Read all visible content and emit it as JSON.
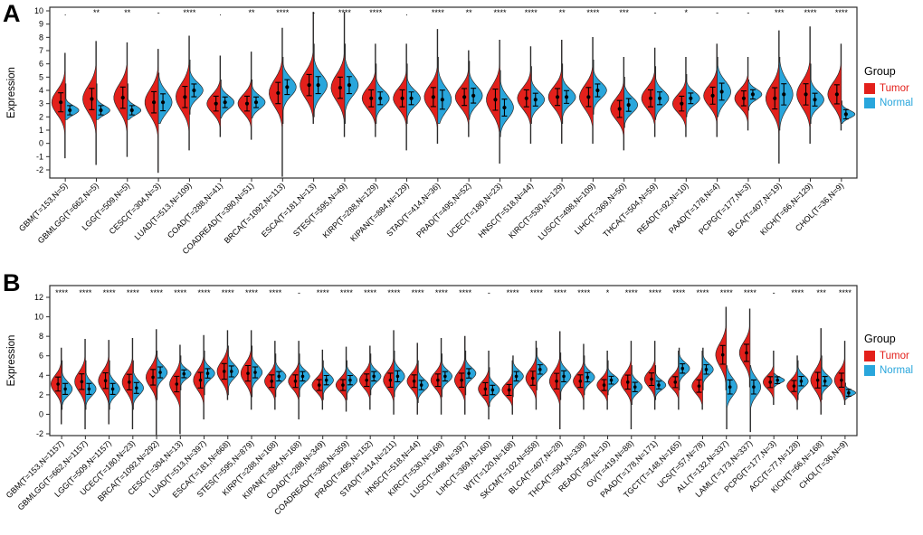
{
  "figure": {
    "panels": [
      {
        "label": "A"
      },
      {
        "label": "B"
      }
    ]
  },
  "legend": {
    "title": "Group",
    "items": [
      {
        "label": "Tumor",
        "color": "#E3201B"
      },
      {
        "label": "Normal",
        "color": "#29A6DC"
      }
    ]
  },
  "chart_data": [
    {
      "type": "violin",
      "variant": "split-violin",
      "panel": "A",
      "ylabel": "Expression",
      "ylim": [
        -2,
        10
      ],
      "yticks": [
        10,
        9,
        8,
        7,
        6,
        5,
        4,
        3,
        2,
        1,
        0,
        -1,
        -2
      ],
      "grid": false,
      "legend_position": "right",
      "series": [
        {
          "name": "Tumor",
          "color": "#E3201B"
        },
        {
          "name": "Normal",
          "color": "#29A6DC"
        }
      ],
      "categories": [
        "GBM(T=153,N=5)",
        "GBMLGG(T=662,N=5)",
        "LGG(T=509,N=5)",
        "CESC(T=304,N=3)",
        "LUAD(T=513,N=109)",
        "COAD(T=288,N=41)",
        "COADREAD(T=380,N=51)",
        "BRCA(T=1092,N=113)",
        "ESCA(T=181,N=13)",
        "STES(T=595,N=49)",
        "KIRP(T=288,N=129)",
        "KIPAN(T=884,N=129)",
        "STAD(T=414,N=36)",
        "PRAD(T=495,N=52)",
        "UCEC(T=180,N=23)",
        "HNSC(T=518,N=44)",
        "KIRC(T=530,N=129)",
        "LUSC(T=498,N=109)",
        "LIHC(T=369,N=50)",
        "THCA(T=504,N=59)",
        "READ(T=92,N=10)",
        "PAAD(T=178,N=4)",
        "PCPG(T=177,N=3)",
        "BLCA(T=407,N=19)",
        "KICH(T=66,N=129)",
        "CHOL(T=36,N=9)"
      ],
      "significance": [
        ".",
        "**",
        "**",
        "-",
        "****",
        ".",
        "**",
        "****",
        "-",
        "****",
        "****",
        ".",
        "****",
        "**",
        "****",
        "****",
        "**",
        "****",
        "***",
        "-",
        "*",
        "-",
        "-",
        "***",
        "****",
        "****"
      ],
      "tumor": {
        "mean": [
          3.1,
          3.35,
          3.45,
          3.1,
          3.5,
          3.0,
          3.0,
          3.8,
          4.4,
          4.2,
          3.4,
          3.4,
          3.5,
          3.5,
          3.3,
          3.4,
          3.5,
          3.5,
          2.6,
          3.4,
          3.0,
          3.6,
          3.4,
          3.4,
          3.7,
          3.7
        ],
        "sd": [
          0.9,
          1.0,
          1.0,
          1.0,
          1.0,
          0.7,
          0.7,
          1.0,
          1.0,
          1.0,
          0.8,
          0.8,
          0.9,
          0.8,
          1.0,
          0.8,
          0.8,
          0.9,
          0.8,
          0.8,
          0.7,
          0.8,
          0.7,
          1.0,
          1.0,
          0.9
        ],
        "min": [
          -1.1,
          -1.6,
          -1.0,
          -2.2,
          -0.5,
          0.5,
          0.3,
          -2.5,
          1.5,
          0.5,
          0.5,
          -0.5,
          0.0,
          0.5,
          -1.5,
          0.0,
          0.0,
          0.0,
          -0.5,
          0.5,
          0.5,
          0.5,
          1.0,
          -1.5,
          0.0,
          1.0
        ],
        "max": [
          6.8,
          7.7,
          7.6,
          7.1,
          8.1,
          6.6,
          6.9,
          8.7,
          9.9,
          9.9,
          7.5,
          7.5,
          8.6,
          7.0,
          7.8,
          7.3,
          7.8,
          8.0,
          6.5,
          7.2,
          6.5,
          7.5,
          6.5,
          8.5,
          8.8,
          7.5
        ]
      },
      "normal": {
        "mean": [
          2.5,
          2.5,
          2.5,
          3.1,
          4.0,
          3.1,
          3.1,
          4.25,
          4.4,
          4.4,
          3.4,
          3.4,
          3.3,
          3.6,
          2.7,
          3.3,
          3.5,
          4.0,
          2.9,
          3.4,
          3.4,
          3.9,
          3.7,
          3.7,
          3.3,
          2.2
        ],
        "sd": [
          0.35,
          0.35,
          0.35,
          0.8,
          0.6,
          0.5,
          0.5,
          0.7,
          0.8,
          0.8,
          0.6,
          0.6,
          0.9,
          0.7,
          0.8,
          0.6,
          0.6,
          0.6,
          0.6,
          0.6,
          0.5,
          0.8,
          0.4,
          1.0,
          0.6,
          0.3
        ],
        "min": [
          1.8,
          1.8,
          1.8,
          1.5,
          2.2,
          1.9,
          1.9,
          1.5,
          2.0,
          1.5,
          1.5,
          1.5,
          1.5,
          1.8,
          0.5,
          1.5,
          1.5,
          2.2,
          1.2,
          1.8,
          2.0,
          2.0,
          2.5,
          1.0,
          1.5,
          1.5
        ],
        "max": [
          4.5,
          4.5,
          4.5,
          5.3,
          6.3,
          4.8,
          4.8,
          6.5,
          7.5,
          7.5,
          6.0,
          6.0,
          6.5,
          6.2,
          5.5,
          5.8,
          6.0,
          6.3,
          5.0,
          5.8,
          5.2,
          6.5,
          4.8,
          6.5,
          6.0,
          3.2
        ]
      }
    },
    {
      "type": "violin",
      "variant": "split-violin",
      "panel": "B",
      "ylabel": "Expression",
      "ylim": [
        -2,
        12
      ],
      "yticks": [
        12,
        10,
        8,
        6,
        4,
        2,
        0,
        -2
      ],
      "grid": false,
      "legend_position": "right",
      "series": [
        {
          "name": "Tumor",
          "color": "#E3201B"
        },
        {
          "name": "Normal",
          "color": "#29A6DC"
        }
      ],
      "categories": [
        "GBM(T=153,N=1157)",
        "GBMLGG(T=662,N=1157)",
        "LGG(T=509,N=1157)",
        "UCEC(T=180,N=23)",
        "BRCA(T=1092,N=292)",
        "CESC(T=304,N=13)",
        "LUAD(T=513,N=397)",
        "ESCA(T=181,N=668)",
        "STES(T=595,N=879)",
        "KIRP(T=288,N=168)",
        "KIPAN(T=884,N=168)",
        "COAD(T=288,N=349)",
        "COADREAD(T=380,N=359)",
        "PRAD(T=495,N=152)",
        "STAD(T=414,N=211)",
        "HNSC(T=518,N=44)",
        "KIRC(T=530,N=168)",
        "LUSC(T=498,N=397)",
        "LIHC(T=369,N=160)",
        "WT(T=120,N=168)",
        "SKCM(T=102,N=558)",
        "BLCA(T=407,N=28)",
        "THCA(T=504,N=338)",
        "READ(T=92,N=10)",
        "OV(T=419,N=88)",
        "PAAD(T=178,N=171)",
        "TGCT(T=148,N=165)",
        "UCS(T=57,N=78)",
        "ALL(T=132,N=337)",
        "LAML(T=173,N=337)",
        "PCPG(T=177,N=3)",
        "ACC(T=77,N=128)",
        "KICH(T=66,N=168)",
        "CHOL(T=36,N=9)"
      ],
      "significance": [
        "****",
        "****",
        "****",
        "****",
        "****",
        "****",
        "****",
        "****",
        "****",
        "****",
        "-",
        "****",
        "****",
        "****",
        "****",
        "****",
        "****",
        "****",
        "-",
        "****",
        "****",
        "****",
        "****",
        "*",
        "****",
        "****",
        "****",
        "****",
        "****",
        "****",
        "-",
        "****",
        "***",
        "****"
      ],
      "tumor": {
        "mean": [
          3.1,
          3.35,
          3.45,
          3.3,
          3.8,
          3.1,
          3.5,
          4.4,
          4.2,
          3.4,
          3.4,
          3.0,
          3.0,
          3.5,
          3.5,
          3.4,
          3.5,
          3.5,
          2.6,
          2.5,
          3.7,
          3.4,
          3.4,
          3.0,
          3.3,
          3.6,
          3.3,
          2.9,
          6.1,
          6.3,
          3.3,
          2.9,
          3.5,
          3.5
        ],
        "sd": [
          0.9,
          1.0,
          1.0,
          1.0,
          1.0,
          1.0,
          1.0,
          1.0,
          1.0,
          0.8,
          0.8,
          0.7,
          0.7,
          0.8,
          0.9,
          0.8,
          0.8,
          0.9,
          0.8,
          0.7,
          0.9,
          1.0,
          0.8,
          0.7,
          0.9,
          0.8,
          0.7,
          0.8,
          1.2,
          1.1,
          0.7,
          0.7,
          1.0,
          0.9
        ],
        "min": [
          -1.0,
          -1.5,
          -1.0,
          -1.5,
          -2.5,
          -2.0,
          -0.5,
          1.5,
          0.5,
          0.5,
          -0.5,
          0.5,
          0.3,
          0.5,
          0.0,
          0.0,
          0.0,
          0.0,
          -0.5,
          0.0,
          0.5,
          -1.5,
          0.5,
          0.5,
          -1.5,
          0.5,
          0.5,
          0.5,
          2.5,
          2.8,
          1.0,
          0.5,
          0.0,
          1.0
        ],
        "max": [
          6.8,
          7.7,
          7.6,
          7.8,
          8.7,
          7.1,
          8.1,
          8.6,
          8.6,
          7.5,
          7.5,
          6.6,
          6.9,
          7.0,
          8.6,
          7.3,
          7.8,
          8.0,
          6.5,
          5.5,
          7.5,
          8.5,
          7.2,
          6.5,
          7.5,
          7.5,
          6.5,
          6.5,
          11.0,
          10.8,
          6.5,
          6.0,
          8.8,
          7.5
        ]
      },
      "normal": {
        "mean": [
          2.6,
          2.6,
          2.6,
          2.7,
          4.3,
          4.15,
          4.2,
          4.4,
          4.3,
          3.9,
          3.9,
          3.5,
          3.5,
          3.9,
          3.9,
          3.0,
          3.9,
          4.2,
          2.5,
          3.9,
          4.6,
          3.9,
          3.8,
          3.5,
          2.8,
          3.0,
          4.7,
          4.6,
          2.8,
          2.8,
          3.5,
          3.4,
          3.4,
          2.2
        ],
        "sd": [
          0.7,
          0.7,
          0.7,
          0.7,
          0.7,
          0.5,
          0.6,
          0.7,
          0.7,
          0.6,
          0.6,
          0.6,
          0.6,
          0.6,
          0.7,
          0.6,
          0.6,
          0.6,
          0.6,
          0.6,
          0.6,
          0.7,
          0.6,
          0.5,
          0.6,
          0.5,
          0.6,
          0.6,
          0.9,
          0.9,
          0.3,
          0.6,
          0.6,
          0.3
        ],
        "min": [
          0.5,
          0.5,
          0.5,
          0.5,
          1.5,
          2.5,
          2.0,
          2.0,
          1.8,
          1.8,
          1.8,
          1.5,
          1.5,
          2.0,
          1.8,
          1.2,
          1.8,
          2.0,
          0.8,
          1.8,
          2.5,
          1.5,
          2.0,
          2.0,
          1.0,
          1.5,
          2.5,
          2.5,
          -1.5,
          -1.8,
          2.8,
          1.5,
          1.5,
          1.5
        ],
        "max": [
          5.5,
          5.5,
          5.5,
          5.5,
          6.5,
          6.0,
          6.5,
          7.0,
          7.0,
          6.2,
          6.2,
          5.5,
          5.5,
          6.2,
          6.5,
          5.5,
          6.2,
          6.5,
          4.8,
          6.0,
          6.8,
          6.3,
          6.0,
          5.5,
          5.0,
          5.0,
          6.8,
          6.8,
          5.0,
          5.0,
          4.2,
          5.5,
          6.0,
          3.2
        ]
      }
    }
  ]
}
